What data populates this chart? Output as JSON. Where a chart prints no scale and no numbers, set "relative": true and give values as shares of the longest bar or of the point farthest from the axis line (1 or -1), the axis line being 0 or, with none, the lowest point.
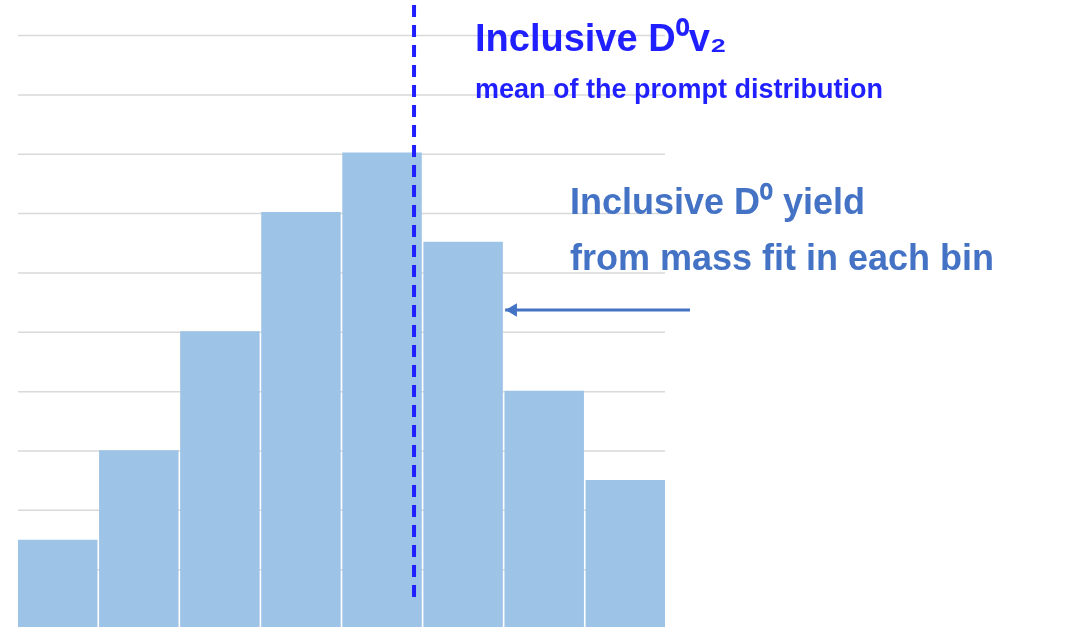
{
  "chart_data": {
    "type": "bar",
    "relative": true,
    "grid": "y",
    "categories": [
      null,
      null,
      null,
      null,
      null,
      null,
      null,
      null
    ],
    "values": [
      0.1875,
      0.375,
      0.625,
      0.875,
      1,
      0.8125,
      0.5,
      0.3125
    ],
    "color": "#9dc3e6",
    "annotations": [
      "Inclusive D⁰v₂",
      "mean of the prompt distribution",
      "Inclusive D⁰ yield\nfrom mass fit in each bin"
    ]
  }
}
